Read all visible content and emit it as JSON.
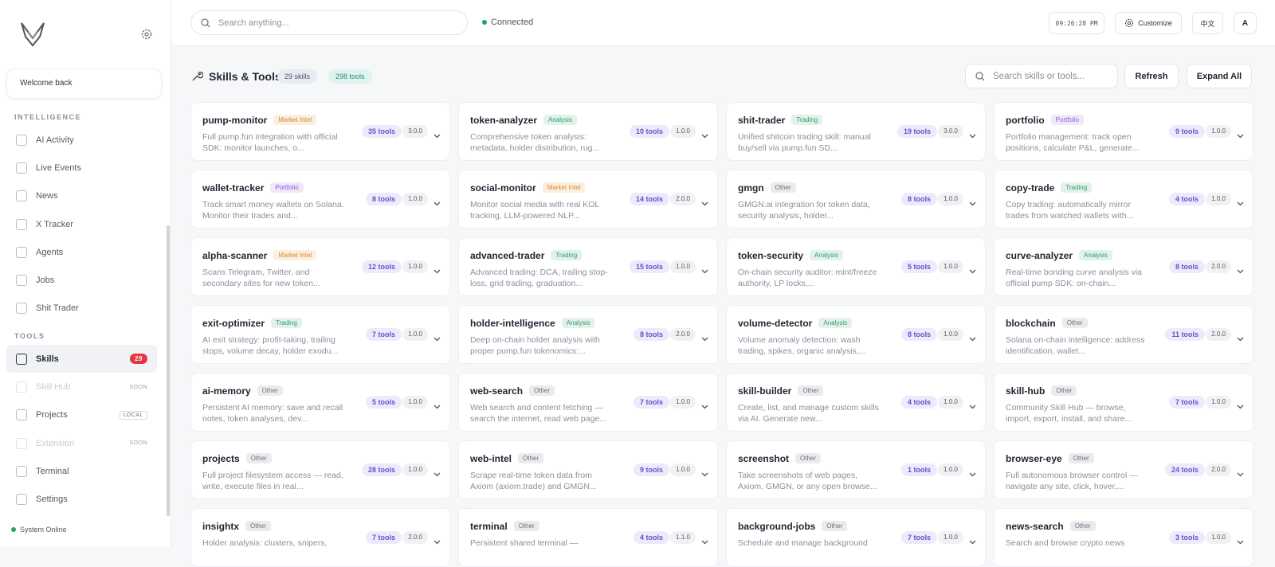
{
  "sidebar": {
    "welcome": "Welcome back",
    "sections": [
      {
        "label": "INTELLIGENCE",
        "items": [
          {
            "label": "AI Activity"
          },
          {
            "label": "Live Events"
          },
          {
            "label": "News"
          },
          {
            "label": "X Tracker"
          },
          {
            "label": "Agents"
          },
          {
            "label": "Jobs"
          },
          {
            "label": "Shit Trader"
          }
        ]
      },
      {
        "label": "TOOLS",
        "items": [
          {
            "label": "Skills",
            "active": true,
            "badge": "29",
            "badge_style": "count"
          },
          {
            "label": "Skill Hub",
            "disabled": true,
            "badge": "SOON",
            "badge_style": "plain"
          },
          {
            "label": "Projects",
            "badge": "LOCAL",
            "badge_style": "boxed"
          },
          {
            "label": "Extension",
            "disabled": true,
            "badge": "SOON",
            "badge_style": "plain"
          },
          {
            "label": "Terminal"
          },
          {
            "label": "Settings"
          }
        ]
      }
    ],
    "status": "System Online"
  },
  "topbar": {
    "search_placeholder": "Search anything...",
    "connection": "Connected",
    "time": "09:26:28 PM",
    "customize": "Customize",
    "language": "中文",
    "avatar": "A"
  },
  "header": {
    "title": "Skills & Tools",
    "skills_count": "29 skills",
    "tools_count": "298 tools",
    "search_placeholder": "Search skills or tools...",
    "refresh": "Refresh",
    "expand_all": "Expand All"
  },
  "cards": [
    {
      "name": "pump-monitor",
      "tag": "Market Intel",
      "tag_color": "#d98a2b",
      "desc": "Full pump.fun integration with official SDK: monitor launches, o...",
      "tools": "35 tools",
      "version": "3.0.0"
    },
    {
      "name": "token-analyzer",
      "tag": "Analysis",
      "tag_color": "#2f9e6a",
      "desc": "Comprehensive token analysis: metadata, holder distribution, rug...",
      "tools": "10 tools",
      "version": "1.0.0"
    },
    {
      "name": "shit-trader",
      "tag": "Trading",
      "tag_color": "#2f9e6a",
      "desc": "Unified shitcoin trading skill: manual buy/sell via pump.fun SD...",
      "tools": "19 tools",
      "version": "3.0.0"
    },
    {
      "name": "portfolio",
      "tag": "Portfolio",
      "tag_color": "#8a5cd6",
      "desc": "Portfolio management: track open positions, calculate P&L, generate...",
      "tools": "9 tools",
      "version": "1.0.0"
    },
    {
      "name": "wallet-tracker",
      "tag": "Portfolio",
      "tag_color": "#8a5cd6",
      "desc": "Track smart money wallets on Solana. Monitor their trades and...",
      "tools": "8 tools",
      "version": "1.0.0"
    },
    {
      "name": "social-monitor",
      "tag": "Market Intel",
      "tag_color": "#d98a2b",
      "desc": "Monitor social media with real KOL tracking, LLM-powered NLP...",
      "tools": "14 tools",
      "version": "2.0.0"
    },
    {
      "name": "gmgn",
      "tag": "Other",
      "tag_color": "#6b7280",
      "desc": "GMGN.ai integration for token data, security analysis, holder...",
      "tools": "8 tools",
      "version": "1.0.0"
    },
    {
      "name": "copy-trade",
      "tag": "Trading",
      "tag_color": "#2f9e6a",
      "desc": "Copy trading: automatically mirror trades from watched wallets with...",
      "tools": "4 tools",
      "version": "1.0.0"
    },
    {
      "name": "alpha-scanner",
      "tag": "Market Intel",
      "tag_color": "#d98a2b",
      "desc": "Scans Telegram, Twitter, and secondary sites for new token...",
      "tools": "12 tools",
      "version": "1.0.0"
    },
    {
      "name": "advanced-trader",
      "tag": "Trading",
      "tag_color": "#2f9e6a",
      "desc": "Advanced trading: DCA, trailing stop-loss, grid trading, graduation...",
      "tools": "15 tools",
      "version": "1.0.0"
    },
    {
      "name": "token-security",
      "tag": "Analysis",
      "tag_color": "#2f9e6a",
      "desc": "On-chain security auditor: mint/freeze authority, LP locks,...",
      "tools": "5 tools",
      "version": "1.0.0"
    },
    {
      "name": "curve-analyzer",
      "tag": "Analysis",
      "tag_color": "#2f9e6a",
      "desc": "Real-time bonding curve analysis via official pump SDK: on-chain...",
      "tools": "8 tools",
      "version": "2.0.0"
    },
    {
      "name": "exit-optimizer",
      "tag": "Trading",
      "tag_color": "#2f9e6a",
      "desc": "AI exit strategy: profit-taking, trailing stops, volume decay, holder exodu...",
      "tools": "7 tools",
      "version": "1.0.0"
    },
    {
      "name": "holder-intelligence",
      "tag": "Analysis",
      "tag_color": "#2f9e6a",
      "desc": "Deep on-chain holder analysis with proper pump.fun tokenomics:...",
      "tools": "8 tools",
      "version": "2.0.0"
    },
    {
      "name": "volume-detector",
      "tag": "Analysis",
      "tag_color": "#2f9e6a",
      "desc": "Volume anomaly detection: wash trading, spikes, organic analysis,...",
      "tools": "8 tools",
      "version": "1.0.0"
    },
    {
      "name": "blockchain",
      "tag": "Other",
      "tag_color": "#6b7280",
      "desc": "Solana on-chain intelligence: address identification, wallet...",
      "tools": "11 tools",
      "version": "2.0.0"
    },
    {
      "name": "ai-memory",
      "tag": "Other",
      "tag_color": "#6b7280",
      "desc": "Persistent AI memory: save and recall notes, token analyses, dev...",
      "tools": "5 tools",
      "version": "1.0.0"
    },
    {
      "name": "web-search",
      "tag": "Other",
      "tag_color": "#6b7280",
      "desc": "Web search and content fetching — search the internet, read web page...",
      "tools": "7 tools",
      "version": "1.0.0"
    },
    {
      "name": "skill-builder",
      "tag": "Other",
      "tag_color": "#6b7280",
      "desc": "Create, list, and manage custom skills via AI. Generate new...",
      "tools": "4 tools",
      "version": "1.0.0"
    },
    {
      "name": "skill-hub",
      "tag": "Other",
      "tag_color": "#6b7280",
      "desc": "Community Skill Hub — browse, import, export, install, and share...",
      "tools": "7 tools",
      "version": "1.0.0"
    },
    {
      "name": "projects",
      "tag": "Other",
      "tag_color": "#6b7280",
      "desc": "Full project filesystem access — read, write, execute files in real...",
      "tools": "28 tools",
      "version": "1.0.0"
    },
    {
      "name": "web-intel",
      "tag": "Other",
      "tag_color": "#6b7280",
      "desc": "Scrape real-time token data from Axiom (axiom.trade) and GMGN...",
      "tools": "9 tools",
      "version": "1.0.0"
    },
    {
      "name": "screenshot",
      "tag": "Other",
      "tag_color": "#6b7280",
      "desc": "Take screenshots of web pages, Axiom, GMGN, or any open browse...",
      "tools": "1 tools",
      "version": "1.0.0"
    },
    {
      "name": "browser-eye",
      "tag": "Other",
      "tag_color": "#6b7280",
      "desc": "Full autonomous browser control — navigate any site, click, hover,...",
      "tools": "24 tools",
      "version": "2.0.0"
    },
    {
      "name": "insightx",
      "tag": "Other",
      "tag_color": "#6b7280",
      "desc": "Holder analysis: clusters, snipers,",
      "tools": "7 tools",
      "version": "2.0.0"
    },
    {
      "name": "terminal",
      "tag": "Other",
      "tag_color": "#6b7280",
      "desc": "Persistent shared terminal —",
      "tools": "4 tools",
      "version": "1.1.0"
    },
    {
      "name": "background-jobs",
      "tag": "Other",
      "tag_color": "#6b7280",
      "desc": "Schedule and manage background",
      "tools": "7 tools",
      "version": "1.0.0"
    },
    {
      "name": "news-search",
      "tag": "Other",
      "tag_color": "#6b7280",
      "desc": "Search and browse crypto news",
      "tools": "3 tools",
      "version": "1.0.0"
    }
  ]
}
